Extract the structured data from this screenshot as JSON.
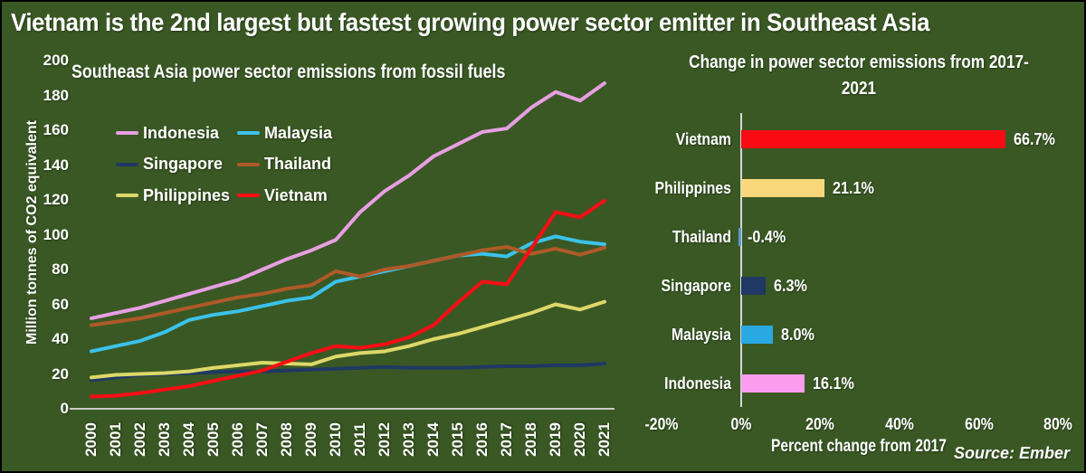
{
  "title": "Vietnam is the 2nd largest but fastest growing power sector emitter in Southeast Asia",
  "source_note": "Source: Ember",
  "colors": {
    "background": "#3A5824",
    "text": "#FFFFFF",
    "axis_gray": "#C9C9C9"
  },
  "chart_data": [
    {
      "id": "emissions-lines",
      "type": "line",
      "title": "Southeast Asia power sector emissions from fossil fuels",
      "ylabel": "Million tonnes of CO2 equivalent",
      "ylim": [
        0,
        200
      ],
      "ytick_step": 20,
      "grid": false,
      "legend_position": "upper-left-two-columns",
      "x": [
        2000,
        2001,
        2002,
        2003,
        2004,
        2005,
        2006,
        2007,
        2008,
        2009,
        2010,
        2011,
        2012,
        2013,
        2014,
        2015,
        2016,
        2017,
        2018,
        2019,
        2020,
        2021
      ],
      "series": [
        {
          "name": "Indonesia",
          "color": "#E79FE3",
          "values": [
            52,
            55,
            58,
            62,
            66,
            70,
            74,
            80,
            86,
            91,
            97,
            113,
            125,
            134,
            145,
            152,
            159,
            161,
            173,
            182,
            177,
            187
          ]
        },
        {
          "name": "Singapore",
          "color": "#1F3864",
          "values": [
            16.5,
            18,
            19.5,
            20,
            20.5,
            21,
            21.5,
            21.5,
            22,
            22.5,
            23,
            23.5,
            24,
            23.5,
            23.5,
            23.5,
            24,
            24.5,
            24.5,
            25,
            25,
            26
          ]
        },
        {
          "name": "Philippines",
          "color": "#DDD868",
          "values": [
            18,
            19.5,
            20,
            20.5,
            21.5,
            23.5,
            25,
            26.5,
            26,
            25.5,
            30,
            32,
            33,
            36,
            40,
            43,
            47,
            51,
            55,
            60,
            57,
            61.5
          ]
        },
        {
          "name": "Malaysia",
          "color": "#3BC3E9",
          "values": [
            33,
            36,
            39,
            44,
            51,
            54,
            56,
            59,
            62,
            64,
            73,
            76,
            79,
            82,
            85,
            88,
            89,
            87.5,
            95,
            99,
            96,
            94.5
          ]
        },
        {
          "name": "Thailand",
          "color": "#AE5A28",
          "values": [
            48,
            50,
            52,
            55,
            58,
            61,
            64,
            66,
            69,
            71,
            79,
            76,
            80,
            82,
            85,
            88,
            91,
            93,
            89,
            92,
            88.5,
            92.5
          ]
        },
        {
          "name": "Vietnam",
          "color": "#F90D14",
          "values": [
            7,
            7.5,
            9,
            11,
            13,
            16,
            19,
            22,
            27,
            32,
            36,
            35,
            37,
            41,
            48,
            61,
            73,
            71.5,
            92,
            113,
            110,
            119.5
          ]
        }
      ]
    },
    {
      "id": "change-bars",
      "type": "bar",
      "title_lines": [
        "Change in power sector emissions from 2017-",
        "2021"
      ],
      "xlabel": "Percent change from 2017",
      "xlim": [
        -20,
        80
      ],
      "xticks": [
        {
          "v": -20,
          "label": "-20%"
        },
        {
          "v": 0,
          "label": "0%"
        },
        {
          "v": 20,
          "label": "20%"
        },
        {
          "v": 40,
          "label": "40%"
        },
        {
          "v": 60,
          "label": "60%"
        },
        {
          "v": 80,
          "label": "80%"
        }
      ],
      "categories": [
        "Vietnam",
        "Philippines",
        "Thailand",
        "Singapore",
        "Malaysia",
        "Indonesia"
      ],
      "values": [
        66.7,
        21.1,
        -0.4,
        6.3,
        8.0,
        16.1
      ],
      "labels": [
        "66.7%",
        "21.1%",
        "-0.4%",
        "6.3%",
        "8.0%",
        "16.1%"
      ],
      "bar_colors": [
        "#F80B12",
        "#F8D87A",
        "#5B9BD5",
        "#203864",
        "#29A9E1",
        "#FB9CEE"
      ]
    }
  ]
}
